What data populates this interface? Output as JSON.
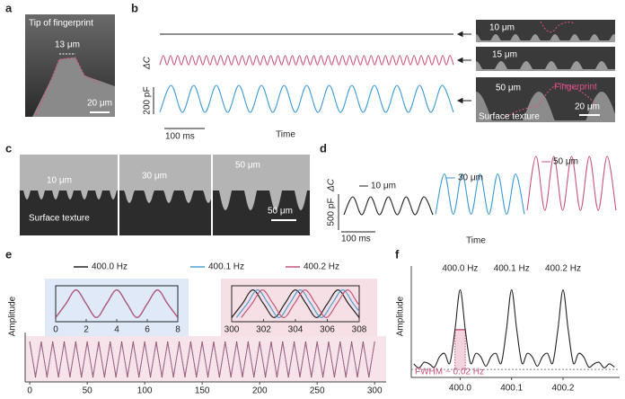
{
  "figure": {
    "panel_labels": [
      "a",
      "b",
      "c",
      "d",
      "e",
      "f"
    ]
  },
  "images": {
    "a": {
      "title": "Tip of fingerprint",
      "feature": "13 μm",
      "scale": "20 μm"
    },
    "b": [
      {
        "feature": "10 μm"
      },
      {
        "feature": "15 μm"
      },
      {
        "feature": "50 μm",
        "fingerprint": "Fingerprint",
        "caption": "Surface texture",
        "scale": "20 μm"
      }
    ],
    "c": [
      {
        "feature": "10 μm",
        "caption": "Surface texture"
      },
      {
        "feature": "30 μm"
      },
      {
        "feature": "50 μm",
        "scale": "50 μm"
      }
    ]
  },
  "chart_data": [
    {
      "type": "line",
      "ylabel": "ΔC",
      "xlabel": "Time",
      "y_scalebar": {
        "value": 200,
        "label": "200 pF"
      },
      "x_scalebar": "100 ms",
      "series": [
        {
          "color": "#222222",
          "values": [
            0,
            0
          ]
        },
        {
          "color": "#c6557a",
          "values": [
            -35,
            35,
            -35,
            35,
            -35,
            35,
            -35,
            35,
            -35,
            35,
            -35,
            35,
            -35,
            35,
            -35,
            35,
            -35,
            35,
            -35,
            35,
            -35,
            35,
            -35,
            35,
            -35,
            35,
            -35,
            35,
            -35,
            35,
            -35,
            35,
            -35,
            35,
            -35,
            35,
            -35,
            35,
            -35,
            35,
            -35,
            35,
            -35,
            35,
            -35,
            35,
            -35,
            35,
            -35,
            35,
            -35,
            35,
            -35,
            35,
            -35,
            35,
            -35,
            35,
            -35,
            35,
            -35,
            35,
            -35,
            35,
            -35,
            35,
            -35,
            35,
            -35,
            35,
            -35,
            35,
            -35,
            35,
            -35,
            35,
            -35,
            35,
            -35,
            35,
            -35,
            35,
            -35
          ]
        },
        {
          "color": "#3c9ad6",
          "values": [
            -100,
            100,
            -100,
            100,
            -100,
            100,
            -100,
            100,
            -100,
            100,
            -100,
            100,
            -100,
            100,
            -100,
            100,
            -100,
            100,
            -100,
            100,
            -100,
            100,
            -100,
            100,
            -100,
            100,
            -100
          ]
        }
      ]
    },
    {
      "type": "line",
      "ylabel": "ΔC",
      "xlabel": "Time",
      "y_scalebar": {
        "value": 500,
        "label": "500 pF"
      },
      "x_scalebar": "100 ms",
      "series": [
        {
          "name": "10 μm",
          "color": "#222222",
          "values": [
            -125,
            125,
            -125,
            125,
            -125,
            125,
            -125,
            125,
            -125,
            125,
            -125
          ]
        },
        {
          "name": "30 μm",
          "color": "#3c9ad6",
          "values": [
            -280,
            280,
            -280,
            280,
            -280,
            280,
            -280,
            280,
            -280,
            280,
            -280
          ]
        },
        {
          "name": "50 μm",
          "color": "#c6557a",
          "values": [
            -375,
            375,
            -375,
            375,
            -375,
            375,
            -375,
            375,
            -375,
            375,
            -375
          ]
        }
      ]
    },
    {
      "type": "line",
      "ylabel": "Amplitude",
      "xlim": [
        -4,
        310
      ],
      "ylim": [
        -1.25,
        5.5
      ],
      "xticks": [
        0,
        50,
        100,
        150,
        200,
        250,
        300
      ],
      "x": [
        0,
        5,
        10,
        15,
        20,
        25,
        30,
        35,
        40,
        45,
        50,
        55,
        60,
        65,
        70,
        75,
        80,
        85,
        90,
        95,
        100,
        105,
        110,
        115,
        120,
        125,
        130,
        135,
        140,
        145,
        150,
        155,
        160,
        165,
        170,
        175,
        180,
        185,
        190,
        195,
        200,
        205,
        210,
        215,
        220,
        225,
        230,
        235,
        240,
        245,
        250,
        255,
        260,
        265,
        270,
        275,
        280,
        285,
        290,
        295,
        300
      ],
      "series": [
        {
          "name": "400.0 Hz",
          "color": "#222222",
          "values": [
            1,
            -1,
            1,
            -1,
            1,
            -1,
            1,
            -1,
            1,
            -1,
            1,
            -1,
            1,
            -1,
            1,
            -1,
            1,
            -1,
            1,
            -1,
            1,
            -1,
            1,
            -1,
            1,
            -1,
            1,
            -1,
            1,
            -1,
            1,
            -1,
            1,
            -1,
            1,
            -1,
            1,
            -1,
            1,
            -1,
            1,
            -1,
            1,
            -1,
            1,
            -1,
            1,
            -1,
            1,
            -1,
            1,
            -1,
            1,
            -1,
            1,
            -1,
            1,
            -1,
            1,
            -1,
            1
          ]
        },
        {
          "name": "400.1 Hz",
          "color": "#4a9fd4",
          "values": [
            0.9,
            -0.9,
            0.9,
            -0.9,
            0.9,
            -0.9,
            0.9,
            -0.9,
            0.9,
            -0.9,
            0.9,
            -0.9,
            0.9,
            -0.9,
            0.9,
            -0.9,
            0.9,
            -0.9,
            0.9,
            -0.9,
            0.9,
            -0.9,
            0.9,
            -0.9,
            0.9,
            -0.9,
            0.9,
            -0.9,
            0.9,
            -0.9,
            0.9,
            -0.9,
            0.9,
            -0.9,
            0.9,
            -0.9,
            0.9,
            -0.9,
            0.9,
            -0.9,
            0.9,
            -0.9,
            0.9,
            -0.9,
            0.9,
            -0.9,
            0.9,
            -0.9,
            0.9,
            -0.9,
            0.9,
            -0.9,
            0.9,
            -0.9,
            0.9,
            -0.9,
            0.9,
            -0.9,
            0.9,
            -0.9,
            0.9
          ]
        },
        {
          "name": "400.2 Hz",
          "color": "#c6557a",
          "values": [
            0.95,
            -0.95,
            0.95,
            -0.95,
            0.95,
            -0.95,
            0.95,
            -0.95,
            0.95,
            -0.95,
            0.95,
            -0.95,
            0.95,
            -0.95,
            0.95,
            -0.95,
            0.95,
            -0.95,
            0.95,
            -0.95,
            0.95,
            -0.95,
            0.95,
            -0.95,
            0.95,
            -0.95,
            0.95,
            -0.95,
            0.95,
            -0.95,
            0.95,
            -0.95,
            0.95,
            -0.95,
            0.95,
            -0.95,
            0.95,
            -0.95,
            0.95,
            -0.95,
            0.95,
            -0.95,
            0.95,
            -0.95,
            0.95,
            -0.95,
            0.95,
            -0.95,
            0.95,
            -0.95,
            0.95,
            -0.95,
            0.95,
            -0.95,
            0.95,
            -0.95,
            0.95,
            -0.95,
            0.95,
            -0.95,
            0.95
          ]
        }
      ],
      "insets": [
        {
          "xlim": [
            0,
            8
          ],
          "ylim": [
            -1.3,
            1.3
          ],
          "xticks": [
            0,
            2,
            4,
            6,
            8
          ],
          "series": [
            {
              "x": [
                0,
                0.67,
                1.33,
                2,
                2.67,
                3.33,
                4,
                4.67,
                5.33,
                6,
                6.67,
                7.33,
                8
              ],
              "values": [
                -1,
                0,
                1,
                0,
                -1,
                0,
                1,
                0,
                -1,
                0,
                1,
                0,
                -1
              ]
            },
            {
              "x": [
                0,
                0.67,
                1.33,
                2,
                2.67,
                3.33,
                4,
                4.67,
                5.33,
                6,
                6.67,
                7.33,
                8
              ],
              "values": [
                -1,
                0,
                1,
                0,
                -1,
                0,
                1,
                0,
                -1,
                0,
                1,
                0,
                -1
              ]
            },
            {
              "x": [
                0,
                0.67,
                1.33,
                2,
                2.67,
                3.33,
                4,
                4.67,
                5.33,
                6,
                6.67,
                7.33,
                8
              ],
              "values": [
                -1,
                0,
                1,
                0,
                -1,
                0,
                1,
                0,
                -1,
                0,
                1,
                0,
                -1
              ]
            }
          ]
        },
        {
          "xlim": [
            300,
            308
          ],
          "ylim": [
            -1.3,
            1.3
          ],
          "xticks": [
            300,
            302,
            304,
            306,
            308
          ],
          "series": [
            {
              "x": [
                300,
                300.67,
                301.33,
                302,
                302.67,
                303.33,
                304,
                304.67,
                305.33,
                306,
                306.67,
                307.33,
                308
              ],
              "values": [
                -1,
                0,
                1,
                0,
                -1,
                0,
                1,
                0,
                -1,
                0,
                1,
                0,
                -1
              ]
            },
            {
              "x": [
                300.3,
                300.97,
                301.63,
                302.3,
                302.97,
                303.63,
                304.3,
                304.97,
                305.63,
                306.3,
                306.97,
                307.63,
                308.3
              ],
              "values": [
                -1,
                0,
                1,
                0,
                -1,
                0,
                1,
                0,
                -1,
                0,
                1,
                0,
                -1
              ]
            },
            {
              "x": [
                300.6,
                301.27,
                301.93,
                302.6,
                303.27,
                303.93,
                304.6,
                305.27,
                305.93,
                306.6,
                307.27,
                307.93,
                308.6
              ],
              "values": [
                -1,
                0,
                1,
                0,
                -1,
                0,
                1,
                0,
                -1,
                0,
                1,
                0,
                -1
              ]
            }
          ]
        }
      ]
    },
    {
      "type": "line",
      "ylabel": "Amplitude",
      "color": "#222222",
      "xlim": [
        399.905,
        400.31
      ],
      "ylim": [
        -0.1,
        1.3
      ],
      "xticks": [
        {
          "value": 400,
          "label": "400.0"
        },
        {
          "value": 400.1,
          "label": "400.1"
        },
        {
          "value": 400.2,
          "label": "400.2"
        }
      ],
      "annotations": [
        "400.0 Hz",
        "400.1 Hz",
        "400.2 Hz",
        "FWHM ~ 0.02 Hz"
      ],
      "x": [
        399.91,
        399.92,
        399.93,
        399.94,
        399.95,
        399.96,
        399.97,
        399.98,
        399.99,
        400.0,
        400.01,
        400.02,
        400.03,
        400.04,
        400.05,
        400.06,
        400.07,
        400.08,
        400.09,
        400.1,
        400.11,
        400.12,
        400.13,
        400.14,
        400.15,
        400.16,
        400.17,
        400.18,
        400.19,
        400.2,
        400.21,
        400.22,
        400.23,
        400.24,
        400.25,
        400.26,
        400.27,
        400.28,
        400.29,
        400.3
      ],
      "values": [
        0.07,
        0.02,
        0.09,
        0.07,
        0.03,
        0.16,
        0.2,
        0.08,
        0.5,
        1,
        0.5,
        0.08,
        0.2,
        0.16,
        0.04,
        0.16,
        0.2,
        0.08,
        0.5,
        1,
        0.5,
        0.08,
        0.2,
        0.16,
        0.04,
        0.16,
        0.2,
        0.08,
        0.5,
        1,
        0.5,
        0.08,
        0.2,
        0.16,
        0.03,
        0.07,
        0.09,
        0.02,
        0.07,
        0.03
      ]
    }
  ]
}
